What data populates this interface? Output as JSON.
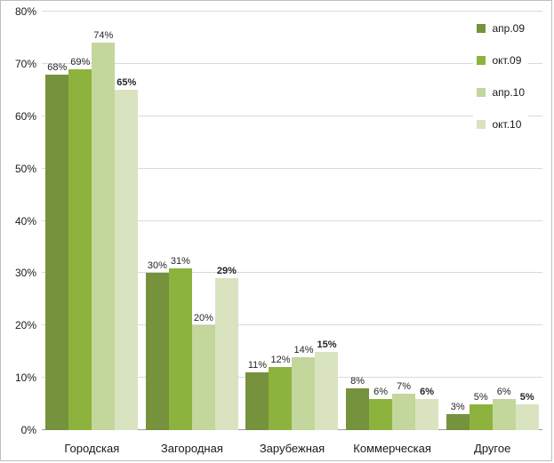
{
  "chart_data": {
    "type": "bar",
    "title": "",
    "xlabel": "",
    "ylabel": "",
    "categories": [
      "Городская",
      "Загородная",
      "Зарубежная",
      "Коммерческая",
      "Другое"
    ],
    "series": [
      {
        "name": "апр.09",
        "color": "#76923c",
        "values": [
          68,
          30,
          11,
          8,
          3
        ],
        "labels_bold": false
      },
      {
        "name": "окт.09",
        "color": "#8db33e",
        "values": [
          69,
          31,
          12,
          6,
          5
        ],
        "labels_bold": false
      },
      {
        "name": "апр.10",
        "color": "#c3d69b",
        "values": [
          74,
          20,
          14,
          7,
          6
        ],
        "labels_bold": false
      },
      {
        "name": "окт.10",
        "color": "#d9e3c0",
        "values": [
          65,
          29,
          15,
          6,
          5
        ],
        "labels_bold": true
      }
    ],
    "value_suffix": "%",
    "ylim": [
      0,
      80
    ],
    "ytick_step": 10,
    "ytick_labels": [
      "0%",
      "10%",
      "20%",
      "30%",
      "40%",
      "50%",
      "60%",
      "70%",
      "80%"
    ],
    "grid": true,
    "legend_position": "top-right",
    "grid_color": "#d9d9d9",
    "axis_color": "#9a9a9a"
  }
}
